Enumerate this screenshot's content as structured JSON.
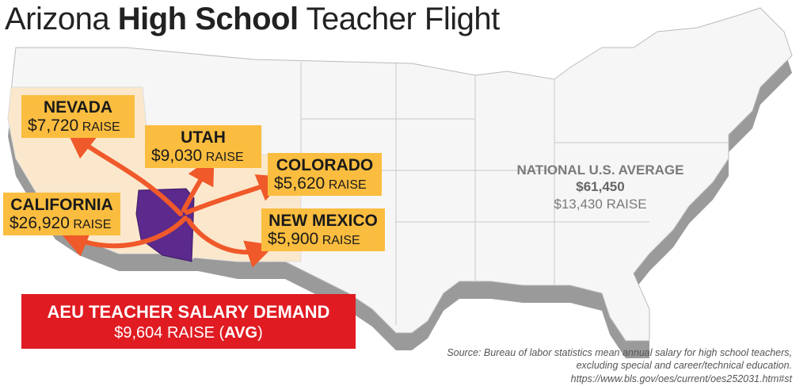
{
  "title": {
    "lead": "Arizona",
    "bold": "High School",
    "tail": "Teacher Flight"
  },
  "states": [
    {
      "name": "NEVADA",
      "amount": "$7,720",
      "unit": "RAISE"
    },
    {
      "name": "UTAH",
      "amount": "$9,030",
      "unit": "RAISE"
    },
    {
      "name": "COLORADO",
      "amount": "$5,620",
      "unit": "RAISE"
    },
    {
      "name": "CALIFORNIA",
      "amount": "$26,920",
      "unit": "RAISE"
    },
    {
      "name": "NEW MEXICO",
      "amount": "$5,900",
      "unit": "RAISE"
    }
  ],
  "national": {
    "heading": "NATIONAL U.S. AVERAGE",
    "salary": "$61,450",
    "raise": "$13,430 RAISE"
  },
  "demand": {
    "heading": "AEU TEACHER SALARY DEMAND",
    "amount": "$9,604 RAISE (",
    "avg": "AVG",
    "close": ")"
  },
  "source": {
    "label": "Source:",
    "text": "Bureau of labor statistics mean annual salary for high school teachers, excluding special and career/technical education.",
    "url": "https://www.bls.gov/oes/current/oes252031.htm#st"
  }
}
